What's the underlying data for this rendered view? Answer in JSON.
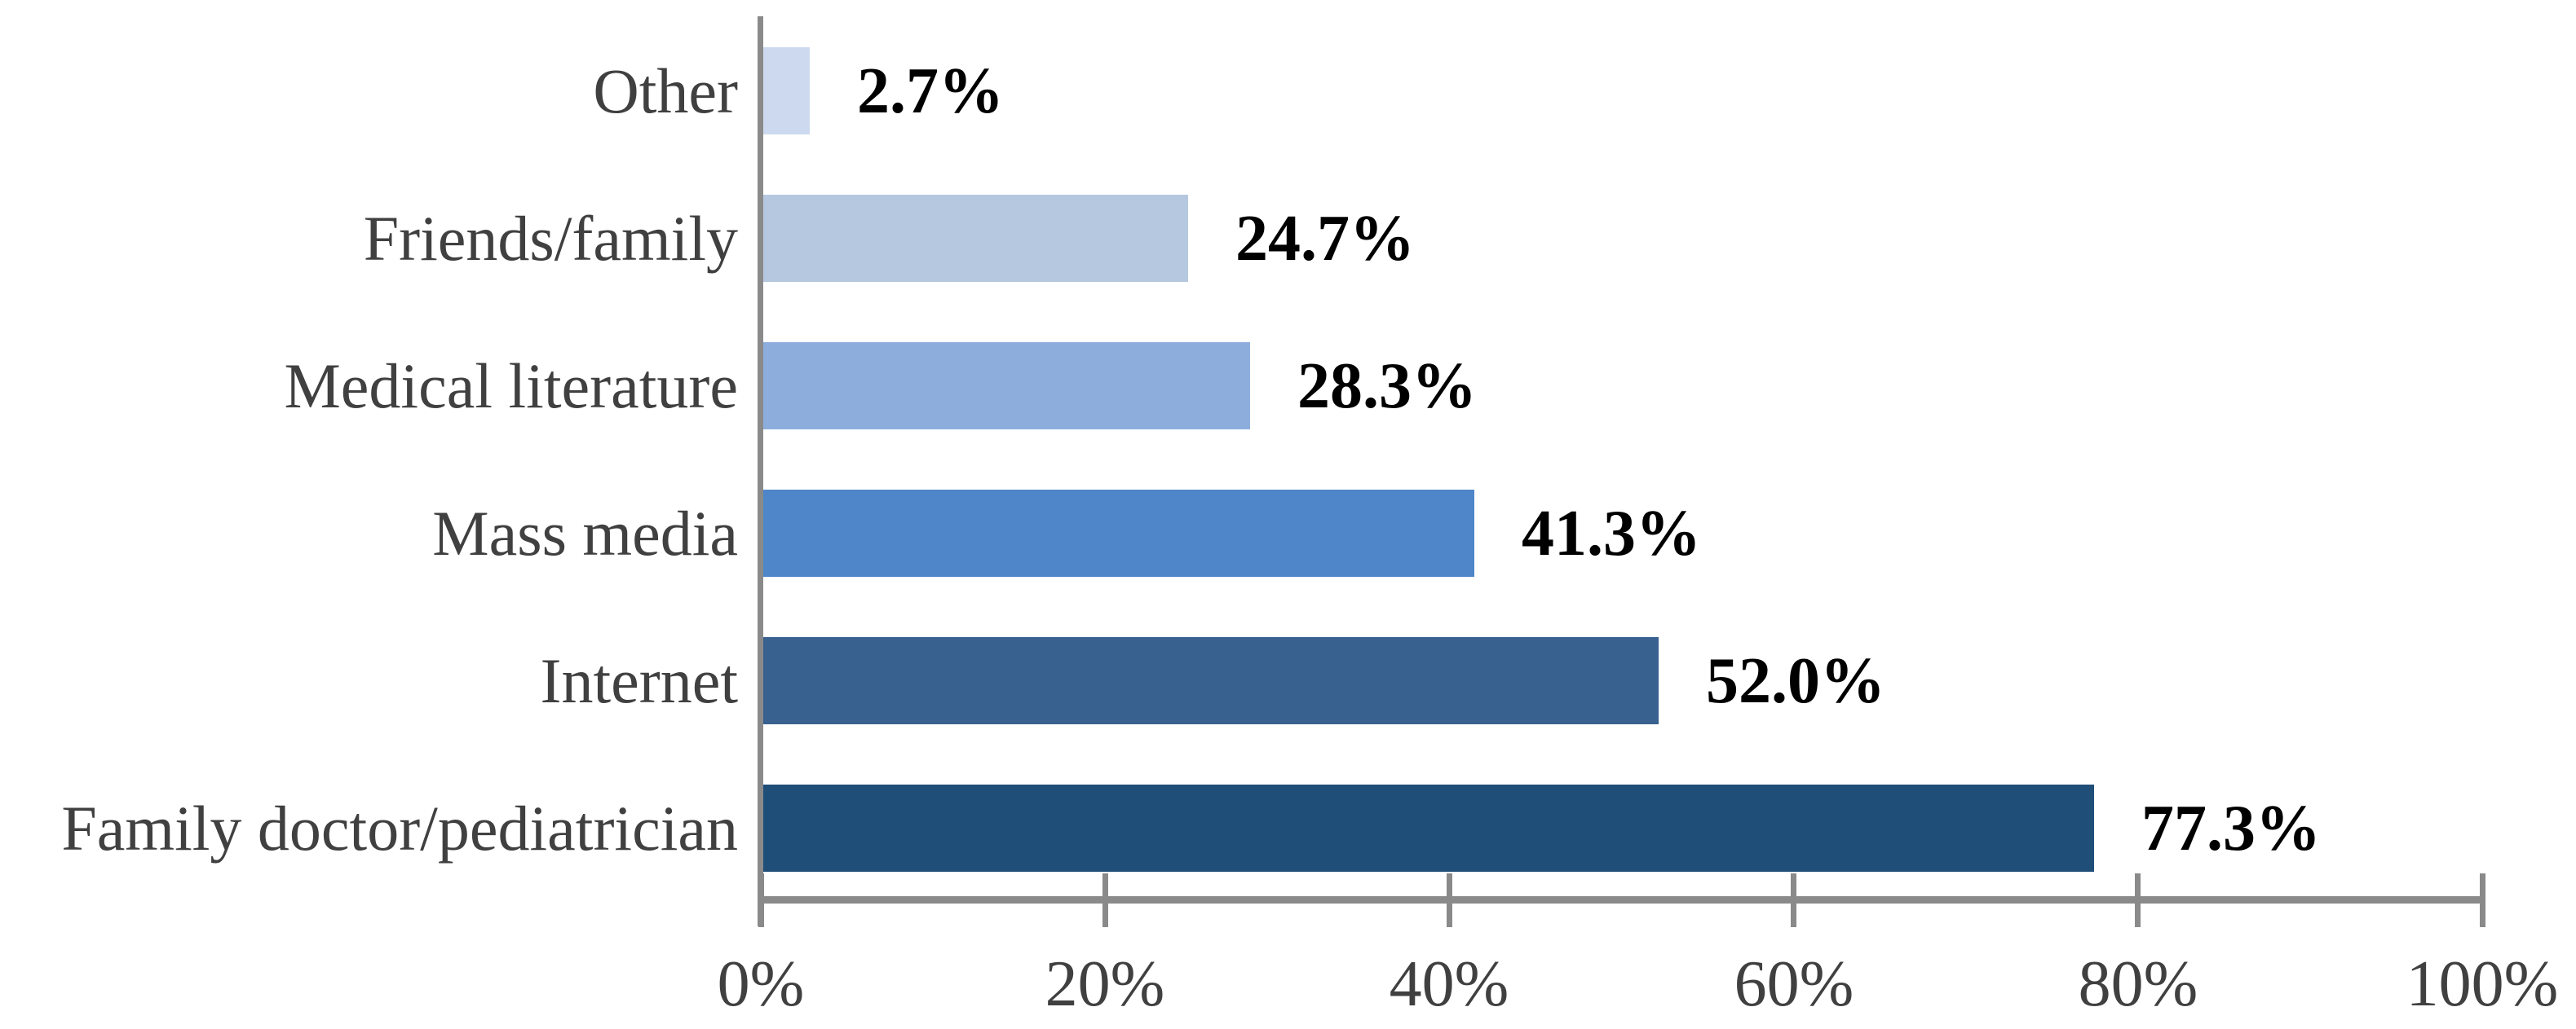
{
  "chart_data": {
    "type": "bar",
    "orientation": "horizontal",
    "title": "",
    "xlabel": "",
    "ylabel": "",
    "grid": false,
    "legend_position": null,
    "xlim": [
      0,
      100
    ],
    "categories": [
      "Other",
      "Friends/family",
      "Medical literature",
      "Mass media",
      "Internet",
      "Family doctor/pediatrician"
    ],
    "values": [
      2.7,
      24.7,
      28.3,
      41.3,
      52.0,
      77.3
    ],
    "value_labels": [
      "2.7%",
      "24.7%",
      "28.3%",
      "41.3%",
      "52.0%",
      "77.3%"
    ],
    "bar_colors": [
      "#CCD9EE",
      "#B6C8E0",
      "#8DAEDC",
      "#4E86C9",
      "#38618F",
      "#1F4E79"
    ],
    "x_ticks": [
      0,
      20,
      40,
      60,
      80,
      100
    ],
    "x_tick_labels": [
      "0%",
      "20%",
      "40%",
      "60%",
      "80%",
      "100%"
    ],
    "axis_color": "#8A8A8A",
    "category_label_color": "#404040",
    "value_label_color": "#000000"
  }
}
